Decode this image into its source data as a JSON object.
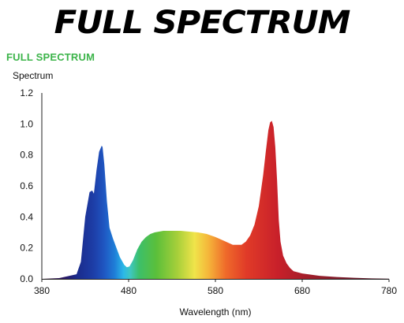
{
  "header": {
    "banner": "FULL SPECTRUM",
    "subtitle": "FULL SPECTRUM",
    "subtitle_color": "#3cb44a"
  },
  "chart_data": {
    "type": "area",
    "ylabel": "Spectrum",
    "xlabel": "Wavelength (nm)",
    "xlim": [
      380,
      780
    ],
    "ylim": [
      0,
      1.2
    ],
    "x_ticks": [
      "380",
      "480",
      "580",
      "680",
      "780"
    ],
    "y_ticks": [
      "0.0",
      "0.2",
      "0.4",
      "0.6",
      "0.8",
      "1.0",
      "1.2"
    ],
    "grid": false,
    "fill": "wavelength-colored spectrum gradient",
    "series": [
      {
        "x": [
          380,
          400,
          420,
          425,
          430,
          435,
          438,
          440,
          443,
          446,
          449,
          450,
          452,
          455,
          458,
          462,
          466,
          470,
          475,
          478,
          481,
          485,
          490,
          495,
          500,
          505,
          510,
          520,
          530,
          540,
          550,
          560,
          570,
          580,
          590,
          600,
          610,
          615,
          620,
          625,
          630,
          635,
          638,
          641,
          643,
          645,
          647,
          649,
          651,
          653,
          655,
          658,
          662,
          666,
          670,
          680,
          700,
          720,
          740,
          760,
          780
        ],
        "values": [
          0.0,
          0.005,
          0.03,
          0.11,
          0.4,
          0.56,
          0.57,
          0.55,
          0.7,
          0.82,
          0.86,
          0.85,
          0.74,
          0.5,
          0.33,
          0.26,
          0.2,
          0.14,
          0.09,
          0.075,
          0.08,
          0.12,
          0.19,
          0.24,
          0.27,
          0.29,
          0.3,
          0.31,
          0.31,
          0.31,
          0.305,
          0.3,
          0.29,
          0.27,
          0.245,
          0.22,
          0.22,
          0.24,
          0.28,
          0.35,
          0.47,
          0.67,
          0.82,
          0.96,
          1.01,
          1.02,
          0.98,
          0.85,
          0.64,
          0.38,
          0.24,
          0.15,
          0.1,
          0.07,
          0.05,
          0.035,
          0.02,
          0.012,
          0.007,
          0.003,
          0.001
        ]
      }
    ]
  }
}
